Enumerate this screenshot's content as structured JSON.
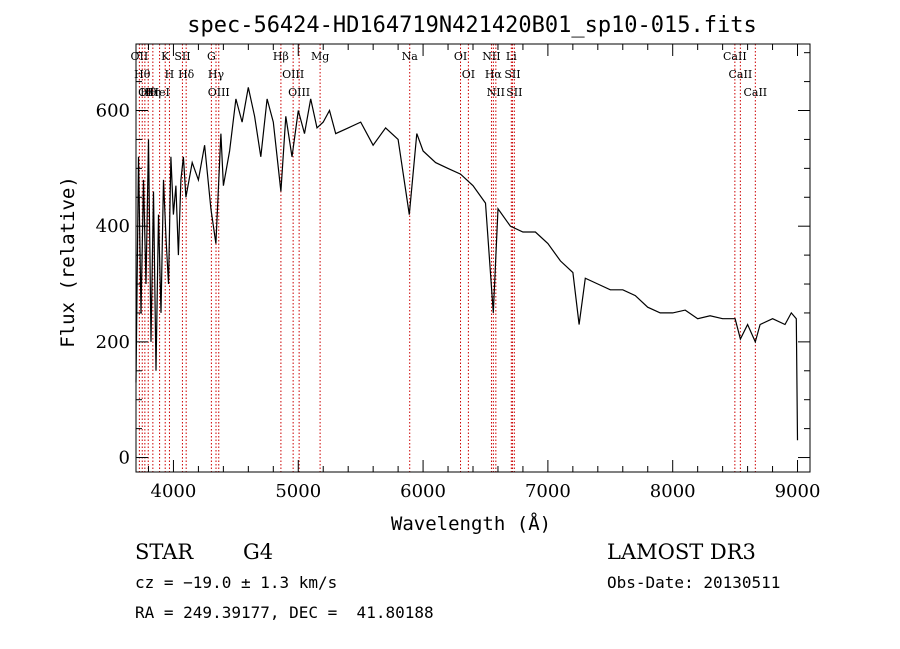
{
  "title": "spec-56424-HD164719N421420B01_sp10-015.fits",
  "chart_data": {
    "type": "line",
    "xlabel": "Wavelength (Å)",
    "ylabel": "Flux (relative)",
    "xlim": [
      3700,
      9100
    ],
    "ylim": [
      -25,
      715
    ],
    "xticks": [
      4000,
      5000,
      6000,
      7000,
      8000,
      9000
    ],
    "yticks": [
      0,
      200,
      400,
      600
    ],
    "grid": false,
    "series": [
      {
        "x": [
          3700,
          3720,
          3740,
          3760,
          3780,
          3800,
          3820,
          3840,
          3860,
          3880,
          3900,
          3920,
          3940,
          3960,
          3980,
          4000,
          4020,
          4040,
          4060,
          4080,
          4100,
          4150,
          4200,
          4250,
          4300,
          4340,
          4380,
          4400,
          4450,
          4500,
          4550,
          4600,
          4650,
          4700,
          4750,
          4800,
          4861,
          4900,
          4950,
          5000,
          5050,
          5100,
          5150,
          5200,
          5250,
          5300,
          5400,
          5500,
          5600,
          5700,
          5800,
          5890,
          5950,
          6000,
          6100,
          6200,
          6300,
          6400,
          6500,
          6563,
          6600,
          6700,
          6800,
          6900,
          7000,
          7100,
          7200,
          7250,
          7300,
          7400,
          7500,
          7600,
          7700,
          7800,
          7900,
          8000,
          8100,
          8200,
          8300,
          8400,
          8500,
          8542,
          8600,
          8662,
          8700,
          8800,
          8900,
          8950,
          8990,
          9000
        ],
        "y": [
          130,
          520,
          250,
          480,
          300,
          550,
          200,
          460,
          150,
          420,
          250,
          480,
          380,
          300,
          520,
          420,
          470,
          350,
          480,
          520,
          450,
          510,
          480,
          540,
          430,
          370,
          560,
          470,
          530,
          620,
          580,
          640,
          590,
          520,
          620,
          580,
          460,
          590,
          520,
          600,
          560,
          620,
          570,
          580,
          600,
          560,
          570,
          580,
          540,
          570,
          550,
          420,
          560,
          530,
          510,
          500,
          490,
          470,
          440,
          250,
          430,
          400,
          390,
          390,
          370,
          340,
          320,
          230,
          310,
          300,
          290,
          290,
          280,
          260,
          250,
          250,
          255,
          240,
          245,
          240,
          240,
          205,
          230,
          200,
          230,
          240,
          230,
          250,
          240,
          30
        ]
      }
    ],
    "lines": [
      {
        "wl": 3727,
        "label": "OII"
      },
      {
        "wl": 3750,
        "label": "Hθ"
      },
      {
        "wl": 3771,
        "label": "OI"
      },
      {
        "wl": 3798,
        "label": "Hθ"
      },
      {
        "wl": 3835,
        "label": "Hη"
      },
      {
        "wl": 3889,
        "label": "HeI"
      },
      {
        "wl": 3934,
        "label": "K"
      },
      {
        "wl": 3968,
        "label": "H"
      },
      {
        "wl": 4072,
        "label": "SII"
      },
      {
        "wl": 4102,
        "label": "Hδ"
      },
      {
        "wl": 4304,
        "label": "G"
      },
      {
        "wl": 4341,
        "label": "Hγ"
      },
      {
        "wl": 4363,
        "label": "OIII"
      },
      {
        "wl": 4861,
        "label": "Hβ"
      },
      {
        "wl": 4959,
        "label": "OIII"
      },
      {
        "wl": 5007,
        "label": "OIII"
      },
      {
        "wl": 5175,
        "label": "Mg"
      },
      {
        "wl": 5893,
        "label": "Na"
      },
      {
        "wl": 6300,
        "label": "OI"
      },
      {
        "wl": 6363,
        "label": "OI"
      },
      {
        "wl": 6548,
        "label": "NII"
      },
      {
        "wl": 6563,
        "label": "Hα"
      },
      {
        "wl": 6583,
        "label": "NII"
      },
      {
        "wl": 6707,
        "label": "Li"
      },
      {
        "wl": 6716,
        "label": "SII"
      },
      {
        "wl": 6731,
        "label": "SII"
      },
      {
        "wl": 8498,
        "label": "CaII"
      },
      {
        "wl": 8542,
        "label": "CaII"
      },
      {
        "wl": 8662,
        "label": "CaII"
      }
    ]
  },
  "info": {
    "class": "STAR",
    "subclass": "G4",
    "survey": "LAMOST DR3",
    "cz": "cz = −19.0 ± 1.3 km/s",
    "obs_date": "Obs-Date: 20130511",
    "radec": "RA = 249.39177, DEC =  41.80188"
  },
  "colors": {
    "line": "#000000",
    "marker": "#cc0000"
  }
}
